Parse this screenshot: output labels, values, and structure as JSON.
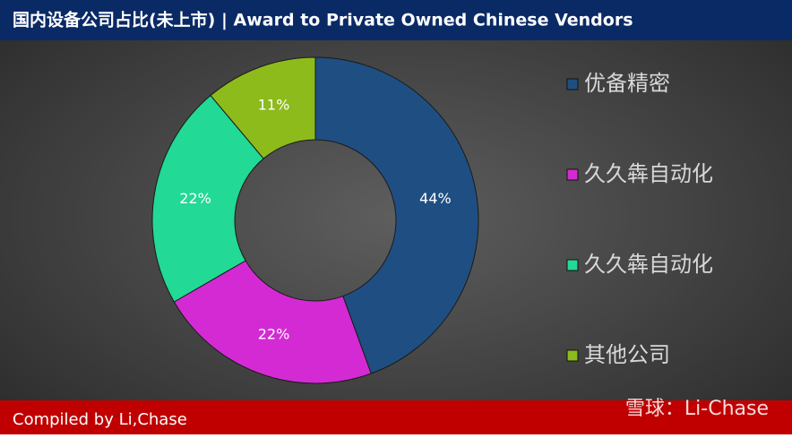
{
  "chart_data": {
    "type": "donut",
    "title": "国内设备公司占比(未上市) | Award to Private Owned Chinese Vendors",
    "categories": [
      "优备精密",
      "久久犇自动化",
      "久久犇自动化",
      "其他公司"
    ],
    "values": [
      44,
      22,
      22,
      11
    ],
    "value_labels": [
      "44%",
      "22%",
      "22%",
      "11%"
    ],
    "colors": [
      "#1f4f82",
      "#d42ad4",
      "#22d996",
      "#8dbb1c"
    ],
    "legend": "right",
    "source": "Compiled by Li,Chase",
    "watermark": "雪球：Li-Chase"
  }
}
